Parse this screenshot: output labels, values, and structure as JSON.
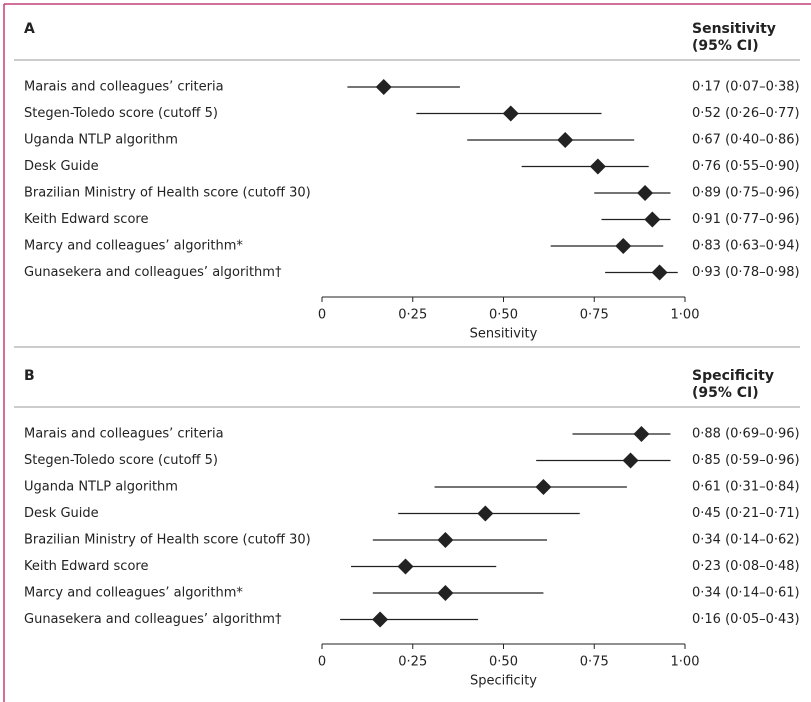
{
  "chart_data": [
    {
      "type": "forest",
      "panel": "A",
      "header": [
        "Sensitivity",
        "(95% CI)"
      ],
      "x_label": "Sensitivity",
      "categories": [
        "Marais and colleagues’ criteria",
        "Stegen-Toledo score (cutoff 5)",
        "Uganda NTLP algorithm",
        "Desk Guide",
        "Brazilian Ministry of Health score (cutoff 30)",
        "Keith Edward score",
        "Marcy and colleagues’ algorithm*",
        "Gunasekera and colleagues’ algorithm†"
      ],
      "values": [
        0.17,
        0.52,
        0.67,
        0.76,
        0.89,
        0.91,
        0.83,
        0.93
      ],
      "lower": [
        0.07,
        0.26,
        0.4,
        0.55,
        0.75,
        0.77,
        0.63,
        0.78
      ],
      "upper": [
        0.38,
        0.77,
        0.86,
        0.9,
        0.96,
        0.96,
        0.94,
        0.98
      ],
      "value_labels": [
        "0·17 (0·07–0·38)",
        "0·52 (0·26–0·77)",
        "0·67 (0·40–0·86)",
        "0·76 (0·55–0·90)",
        "0·89 (0·75–0·96)",
        "0·91 (0·77–0·96)",
        "0·83 (0·63–0·94)",
        "0·93 (0·78–0·98)"
      ],
      "xlim": [
        0,
        1
      ],
      "xticks": [
        0,
        {
          "value": 0.25,
          "label": "0·25"
        },
        {
          "value": 0.5,
          "label": "0·50"
        },
        {
          "value": 0.75,
          "label": "0·75"
        },
        {
          "value": 1,
          "label": "1·00"
        }
      ],
      "color": "#222222"
    },
    {
      "type": "forest",
      "panel": "B",
      "header": [
        "Specificity",
        "(95% CI)"
      ],
      "x_label": "Specificity",
      "categories": [
        "Marais and colleagues’ criteria",
        "Stegen-Toledo score (cutoff 5)",
        "Uganda NTLP algorithm",
        "Desk Guide",
        "Brazilian Ministry of Health score (cutoff 30)",
        "Keith Edward score",
        "Marcy and colleagues’ algorithm*",
        "Gunasekera and colleagues’ algorithm†"
      ],
      "values": [
        0.88,
        0.85,
        0.61,
        0.45,
        0.34,
        0.23,
        0.34,
        0.16
      ],
      "lower": [
        0.69,
        0.59,
        0.31,
        0.21,
        0.14,
        0.08,
        0.14,
        0.05
      ],
      "upper": [
        0.96,
        0.96,
        0.84,
        0.71,
        0.62,
        0.48,
        0.61,
        0.43
      ],
      "value_labels": [
        "0·88 (0·69–0·96)",
        "0·85 (0·59–0·96)",
        "0·61 (0·31–0·84)",
        "0·45 (0·21–0·71)",
        "0·34 (0·14–0·62)",
        "0·23 (0·08–0·48)",
        "0·34 (0·14–0·61)",
        "0·16 (0·05–0·43)"
      ],
      "xlim": [
        0,
        1
      ],
      "xticks": [
        0,
        {
          "value": 0.25,
          "label": "0·25"
        },
        {
          "value": 0.5,
          "label": "0·50"
        },
        {
          "value": 0.75,
          "label": "0·75"
        },
        {
          "value": 1,
          "label": "1·00"
        }
      ],
      "color": "#222222"
    }
  ]
}
